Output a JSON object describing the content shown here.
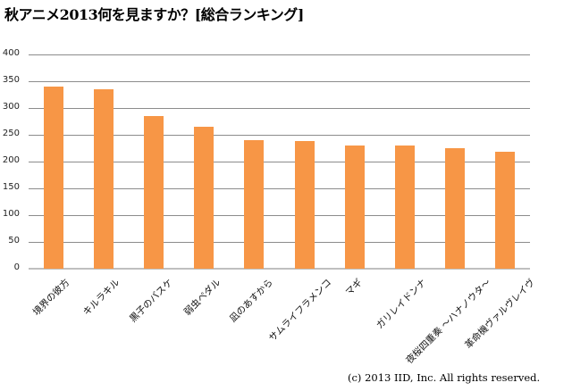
{
  "title": "秋アニメ2013何を見ますか？[総合ランキング]",
  "copyright": "(c) 2013 IID, Inc. All rights reserved.",
  "colors": {
    "bar": "#f79646",
    "grid": "#8c8c8c"
  },
  "y_ticks": [
    "0",
    "50",
    "100",
    "150",
    "200",
    "250",
    "300",
    "350",
    "400"
  ],
  "chart_data": {
    "type": "bar",
    "title": "秋アニメ2013何を見ますか？[総合ランキング]",
    "xlabel": "",
    "ylabel": "",
    "ylim": [
      0,
      400
    ],
    "yticks": [
      0,
      50,
      100,
      150,
      200,
      250,
      300,
      350,
      400
    ],
    "grid": true,
    "legend": "none",
    "categories": [
      "境界の彼方",
      "キルラキル",
      "黒子のバスケ",
      "弱虫ペダル",
      "凪のあすから",
      "サムライフラメンコ",
      "マギ",
      "ガリレイドンナ",
      "夜桜四重奏 ～ハナノウタ～",
      "革命機ヴァルヴレイヴ"
    ],
    "values": [
      340,
      335,
      285,
      265,
      240,
      238,
      230,
      230,
      225,
      218
    ],
    "annotations": [
      "(c) 2013 IID, Inc. All rights reserved."
    ]
  }
}
